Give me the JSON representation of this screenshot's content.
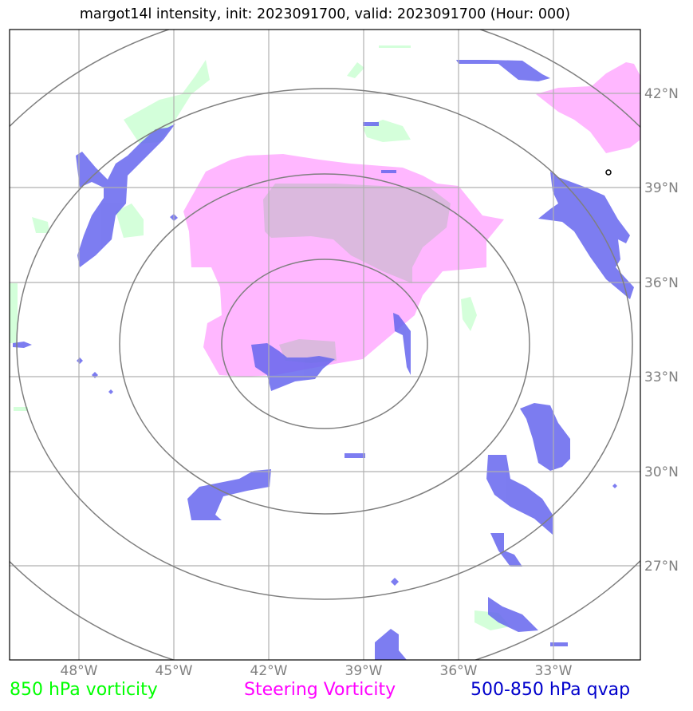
{
  "title": "margot14l intensity, init: 2023091700, valid: 2023091700 (Hour: 000)",
  "map": {
    "lon_labels": [
      "48°W",
      "45°W",
      "42°W",
      "39°W",
      "36°W",
      "33°W"
    ],
    "lat_labels": [
      "42°N",
      "39°N",
      "36°N",
      "33°N",
      "30°N",
      "27°N"
    ],
    "grid_color": "#b0b0b0",
    "ring_color": "#7f7f7f",
    "label_color": "#808080"
  },
  "legend": {
    "vort850": {
      "label": "850 hPa vorticity",
      "color": "#00ff00",
      "fill": "#ccffd4"
    },
    "steering": {
      "label": "Steering Vorticity",
      "color": "#ff00ff",
      "fill": "#ffb3ff"
    },
    "qvap": {
      "label": "500-850 hPa qvap",
      "color": "#0000cc",
      "fill": "#6666ee"
    }
  }
}
